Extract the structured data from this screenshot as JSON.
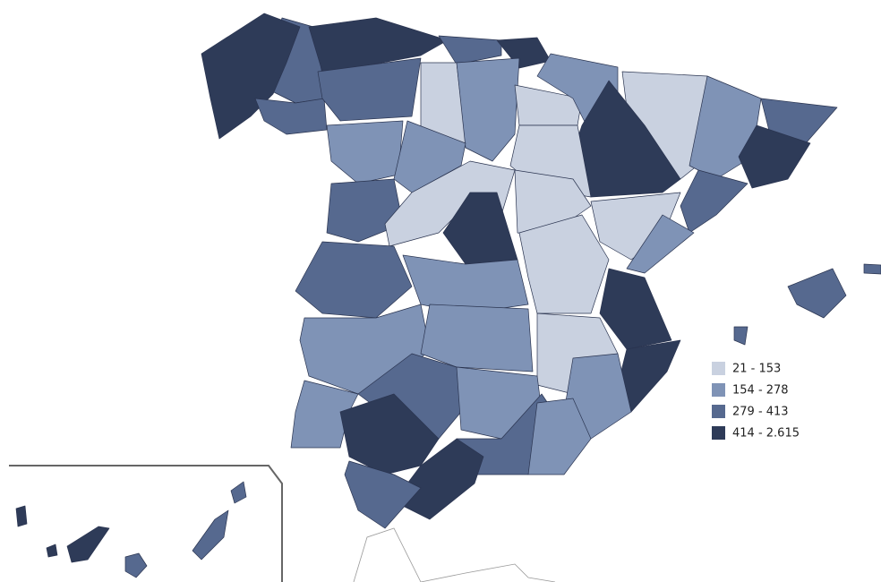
{
  "legend": {
    "items": [
      {
        "label": "21 - 153",
        "color": "#c9d1e0"
      },
      {
        "label": "154 - 278",
        "color": "#7f93b6"
      },
      {
        "label": "279 - 413",
        "color": "#56698f"
      },
      {
        "label": "414 - 2.615",
        "color": "#2e3b58"
      }
    ]
  }
}
